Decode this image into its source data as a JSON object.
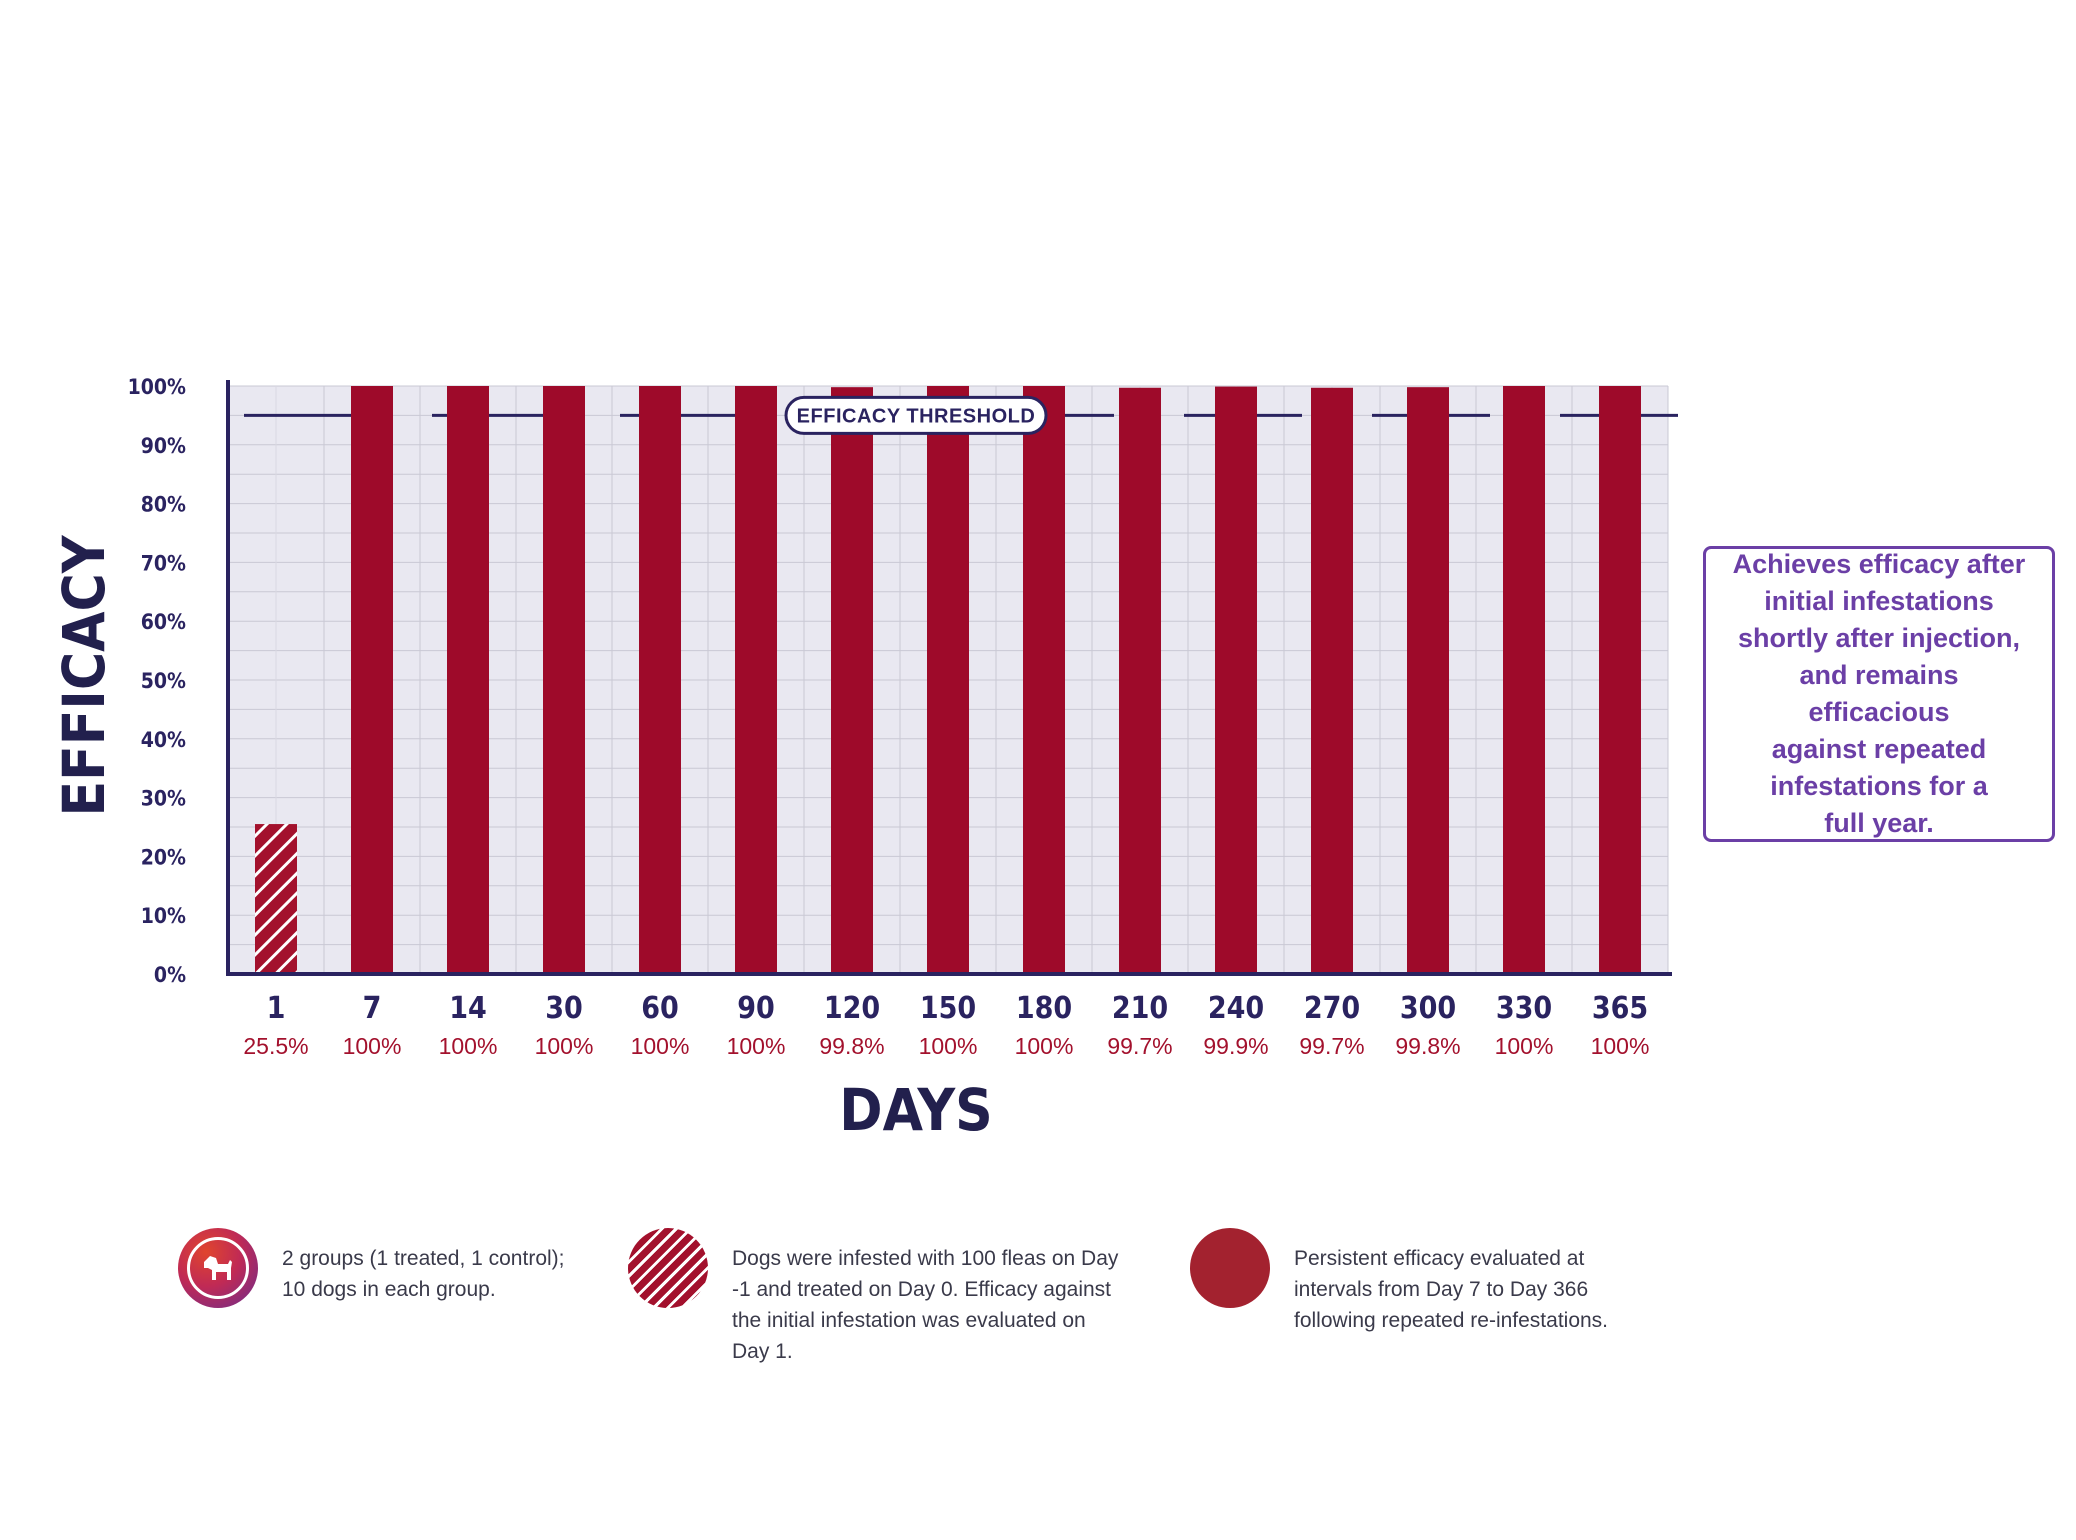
{
  "chart_data": {
    "type": "bar",
    "categories": [
      "1",
      "7",
      "14",
      "30",
      "60",
      "90",
      "120",
      "150",
      "180",
      "210",
      "240",
      "270",
      "300",
      "330",
      "365"
    ],
    "values": [
      25.5,
      100,
      100,
      100,
      100,
      100,
      99.8,
      100,
      100,
      99.7,
      99.9,
      99.7,
      99.8,
      100,
      100
    ],
    "data_labels": [
      "25.5%",
      "100%",
      "100%",
      "100%",
      "100%",
      "100%",
      "99.8%",
      "100%",
      "100%",
      "99.7%",
      "99.9%",
      "99.7%",
      "99.8%",
      "100%",
      "100%"
    ],
    "bar_styles": [
      "hatched",
      "solid",
      "solid",
      "solid",
      "solid",
      "solid",
      "solid",
      "solid",
      "solid",
      "solid",
      "solid",
      "solid",
      "solid",
      "solid",
      "solid"
    ],
    "y_ticks": [
      "0%",
      "10%",
      "20%",
      "30%",
      "40%",
      "50%",
      "60%",
      "70%",
      "80%",
      "90%",
      "100%"
    ],
    "ylim": [
      0,
      100
    ],
    "xlabel": "DAYS",
    "ylabel": "EFFICACY",
    "threshold": {
      "value": 95,
      "label": "EFFICACY THRESHOLD"
    },
    "colors": {
      "bar": "#9e0a2a",
      "axis": "#2a2360",
      "plot_bg": "#e9e8f1",
      "label": "#a3112d"
    }
  },
  "callout": {
    "lines": [
      "Achieves efficacy after",
      "initial infestations",
      "shortly after injection,",
      "and remains efficacious",
      "against repeated",
      "infestations for a",
      "full year."
    ]
  },
  "legend": [
    {
      "icon": "dog-icon",
      "lines": [
        "2 groups (1 treated, 1 control);",
        "10 dogs in each group."
      ]
    },
    {
      "icon": "hatched-circle-icon",
      "lines": [
        "Dogs were infested with 100 fleas on Day",
        "-1 and treated on Day 0. Efficacy against",
        "the initial infestation was evaluated on",
        "Day 1."
      ]
    },
    {
      "icon": "solid-circle-icon",
      "lines": [
        "Persistent efficacy evaluated at",
        "intervals from Day 7 to Day 366",
        "following repeated re-infestations."
      ]
    }
  ]
}
